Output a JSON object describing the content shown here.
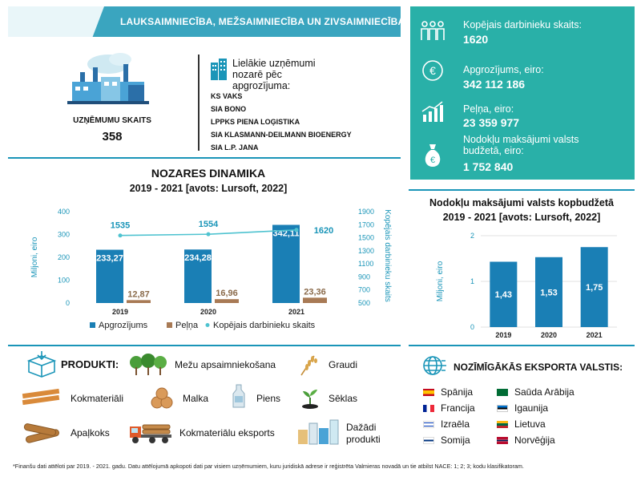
{
  "header": {
    "title": "LAUKSAIMNIECĪBA, MEŽSAIMNIECĪBA UN ZIVSAIMNIECĪBA"
  },
  "companies_count": {
    "label": "UZŅĒMUMU SKAITS",
    "value": "358"
  },
  "largest": {
    "title": "Lielākie uzņēmumi nozarē pēc apgrozījuma:",
    "items": [
      "KS VAKS",
      "SIA BONO",
      "LPPKS PIENA LOĢISTIKA",
      "SIA KLASMANN-DEILMANN BIOENERGY",
      "SIA L.P. JANA"
    ]
  },
  "stats": {
    "employees": {
      "label": "Kopējais darbinieku skaits:",
      "value": "1620",
      "icon": "people-icon"
    },
    "turnover": {
      "label": "Apgrozījums, eiro:",
      "value": "342 112 186",
      "icon": "euro-coin-icon"
    },
    "profit": {
      "label": "Peļņa, eiro:",
      "value": "23 359 977",
      "icon": "growth-chart-icon"
    },
    "taxes": {
      "label1": "Nodokļu maksājumi valsts",
      "label2": "budžetā, eiro:",
      "value": "1 752 840",
      "icon": "money-bag-icon"
    }
  },
  "colors": {
    "teal": "#1a95b8",
    "panel": "#29b0a8",
    "bar": "#1a7fb5",
    "profit_bar": "#a87a55",
    "line": "#4fc3d0"
  },
  "dynamics": {
    "title": "NOZARES DINAMIKA",
    "subtitle": "2019 - 2021 [avots: Lursoft, 2022]",
    "legend": [
      "Apgrozījums",
      "Peļņa",
      "Kopējais darbinieku skaits"
    ]
  },
  "tax_chart": {
    "title": "Nodokļu maksājumi valsts kopbudžetā",
    "subtitle": "2019 - 2021 [avots: Lursoft, 2022]"
  },
  "chart_data": [
    {
      "type": "bar",
      "categories": [
        "2019",
        "2020",
        "2021"
      ],
      "series": [
        {
          "name": "Apgrozījums",
          "values": [
            233.27,
            234.28,
            342.11
          ],
          "labels": [
            "233,27",
            "234,28",
            "342,11"
          ]
        },
        {
          "name": "Peļņa",
          "values": [
            12.87,
            16.96,
            23.36
          ],
          "labels": [
            "12,87",
            "16,96",
            "23,36"
          ]
        },
        {
          "name": "Kopējais darbinieku skaits",
          "values": [
            1535,
            1554,
            1620
          ],
          "labels": [
            "1535",
            "1554",
            "1620"
          ],
          "axis": "right",
          "type": "line"
        }
      ],
      "ylabel": "Miljoni, eiro",
      "ylabel_right": "Kopējais darbinieku skaits",
      "ylim": [
        0,
        400
      ],
      "ylim_right": [
        500,
        1900
      ],
      "yticks": [
        "0",
        "100",
        "200",
        "300",
        "400"
      ],
      "yticks_right": [
        "500",
        "700",
        "900",
        "1100",
        "1300",
        "1500",
        "1700",
        "1900"
      ],
      "grid": false,
      "legend": "bottom"
    },
    {
      "type": "bar",
      "categories": [
        "2019",
        "2020",
        "2021"
      ],
      "values": [
        1.43,
        1.53,
        1.75
      ],
      "labels": [
        "1,43",
        "1,53",
        "1,75"
      ],
      "ylabel": "Miljoni, eiro",
      "ylim": [
        0,
        2
      ],
      "yticks": [
        "0",
        "1",
        "2"
      ],
      "grid": true
    }
  ],
  "products": {
    "title": "PRODUKTI:",
    "items": [
      {
        "label": "Mežu apsaimniekošana",
        "icon": "forest-icon"
      },
      {
        "label": "Graudi",
        "icon": "wheat-icon"
      },
      {
        "label": "Kokmateriāli",
        "icon": "planks-icon"
      },
      {
        "label": "Malka",
        "icon": "firewood-icon"
      },
      {
        "label": "Piens",
        "icon": "milk-icon"
      },
      {
        "label": "Sēklas",
        "icon": "seedling-icon"
      },
      {
        "label": "Apaļkoks",
        "icon": "logs-icon"
      },
      {
        "label": "Kokmateriālu eksports",
        "icon": "timber-truck-icon"
      },
      {
        "label": "Dažādi",
        "label2": "produkti",
        "icon": "groceries-icon"
      }
    ]
  },
  "export": {
    "title": "NOZĪMĪGĀKĀS EKSPORTA VALSTIS:",
    "countries": [
      "Spānija",
      "Saūda Arābija",
      "Francija",
      "Igaunija",
      "Izraēla",
      "Lietuva",
      "Somija",
      "Norvēģija"
    ]
  },
  "footnote": "*Finanšu dati attēloti par 2019. - 2021. gadu. Datu attēlojumā apkopoti dati par visiem uzņēmumiem, kuru juridiskā adrese ir reģistrēta Valmieras novadā un tie atbilst NACE: 1; 2; 3;  kodu klasifikatoram."
}
